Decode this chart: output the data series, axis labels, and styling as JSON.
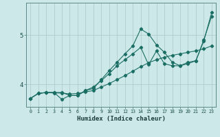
{
  "title": "",
  "xlabel": "Humidex (Indice chaleur)",
  "bg_color": "#cce8e8",
  "line_color": "#1a6e64",
  "grid_color": "#b0cccc",
  "x": [
    0,
    1,
    2,
    3,
    4,
    5,
    6,
    7,
    8,
    9,
    10,
    11,
    12,
    13,
    14,
    15,
    16,
    17,
    18,
    19,
    20,
    21,
    22,
    23
  ],
  "line1": [
    3.72,
    3.82,
    3.84,
    3.84,
    3.84,
    3.78,
    3.78,
    3.88,
    3.95,
    4.08,
    4.22,
    4.38,
    4.5,
    4.62,
    4.75,
    4.4,
    4.68,
    4.42,
    4.38,
    4.38,
    4.45,
    4.48,
    4.9,
    5.38
  ],
  "line2": [
    3.72,
    3.82,
    3.84,
    3.84,
    3.7,
    3.78,
    3.78,
    3.88,
    3.92,
    4.1,
    4.28,
    4.45,
    4.62,
    4.78,
    5.12,
    5.02,
    4.8,
    4.65,
    4.45,
    4.38,
    4.42,
    4.48,
    4.88,
    5.45
  ],
  "line3": [
    3.72,
    3.82,
    3.84,
    3.83,
    3.83,
    3.81,
    3.82,
    3.85,
    3.88,
    3.95,
    4.02,
    4.1,
    4.18,
    4.27,
    4.36,
    4.44,
    4.5,
    4.55,
    4.59,
    4.62,
    4.65,
    4.68,
    4.72,
    4.78
  ],
  "yticks": [
    4,
    5
  ],
  "ylim": [
    3.55,
    5.65
  ],
  "xlim": [
    -0.5,
    23.5
  ],
  "xtick_labels": [
    "0",
    "1",
    "2",
    "3",
    "4",
    "5",
    "6",
    "7",
    "8",
    "9",
    "10",
    "11",
    "12",
    "13",
    "14",
    "15",
    "16",
    "17",
    "18",
    "19",
    "20",
    "21",
    "22",
    "23"
  ]
}
